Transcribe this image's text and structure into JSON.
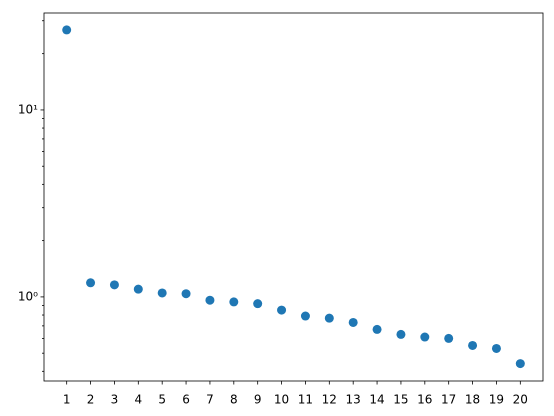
{
  "chart_data": {
    "type": "scatter",
    "color": "#1f77b4",
    "x": [
      1,
      2,
      3,
      4,
      5,
      6,
      7,
      8,
      9,
      10,
      11,
      12,
      13,
      14,
      15,
      16,
      17,
      18,
      19,
      20
    ],
    "values": [
      26.8,
      1.19,
      1.16,
      1.1,
      1.05,
      1.04,
      0.96,
      0.94,
      0.92,
      0.85,
      0.79,
      0.77,
      0.73,
      0.67,
      0.63,
      0.61,
      0.6,
      0.55,
      0.53,
      0.44
    ],
    "xlim": [
      0.05,
      20.95
    ],
    "xticks": [
      1,
      2,
      3,
      4,
      5,
      6,
      7,
      8,
      9,
      10,
      11,
      12,
      13,
      14,
      15,
      16,
      17,
      18,
      19,
      20
    ],
    "ylim": [
      0.355,
      33
    ],
    "log_y": true,
    "yticks": [
      {
        "value": 1,
        "label": "10⁰"
      },
      {
        "value": 10,
        "label": "10¹"
      }
    ],
    "yminorticks": [
      0.4,
      0.5,
      0.6,
      0.7,
      0.8,
      0.9,
      2,
      3,
      4,
      5,
      6,
      7,
      8,
      9,
      20,
      30
    ],
    "grid": false
  }
}
